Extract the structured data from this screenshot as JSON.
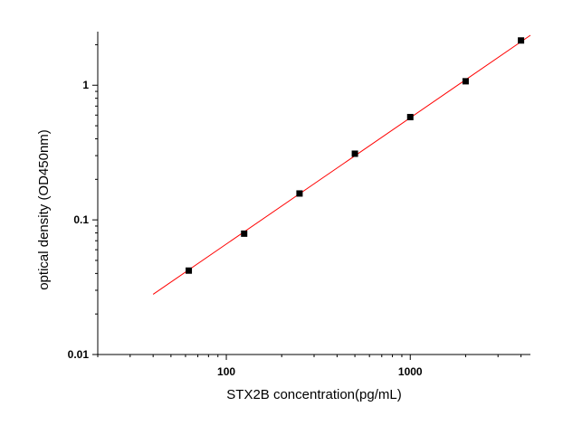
{
  "chart_data": {
    "type": "scatter",
    "title": "",
    "xlabel": "STX2B  concentration(pg/mL)",
    "ylabel": "optical density (OD450nm)",
    "x_scale": "log",
    "y_scale": "log",
    "xlim": [
      20,
      4500
    ],
    "ylim": [
      0.01,
      2.5
    ],
    "x_ticks": [
      100,
      1000
    ],
    "x_tick_labels": [
      "100",
      "1000"
    ],
    "y_ticks": [
      0.01,
      0.1,
      1
    ],
    "y_tick_labels": [
      "0.01",
      "0.1",
      "1"
    ],
    "grid": false,
    "legend": "none",
    "series": [
      {
        "x": [
          62.5,
          125,
          250,
          500,
          1000,
          2000,
          4000
        ],
        "y": [
          0.042,
          0.079,
          0.157,
          0.31,
          0.58,
          1.07,
          2.15
        ],
        "marker_color": "#000000",
        "fit_line": {
          "x": [
            40,
            4500
          ],
          "y": [
            0.028,
            2.35
          ],
          "color": "#ff0000"
        }
      }
    ]
  }
}
